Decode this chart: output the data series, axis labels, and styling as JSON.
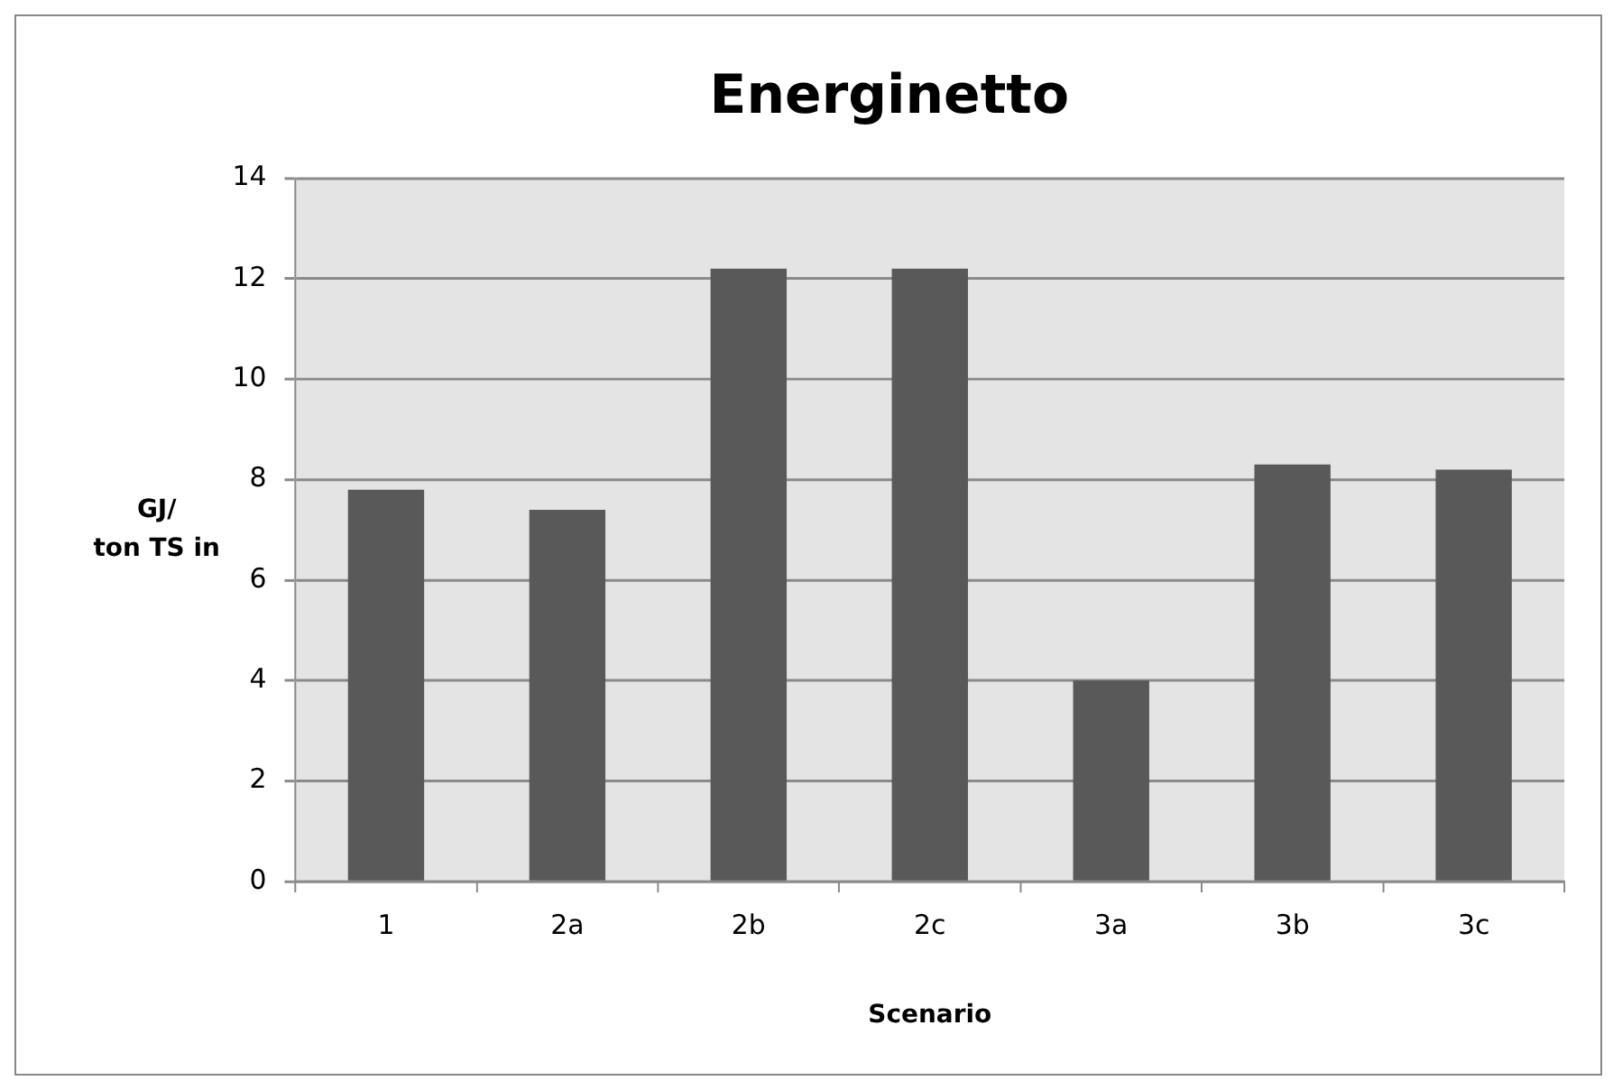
{
  "chart_data": {
    "type": "bar",
    "title": "Energinetto",
    "xlabel": "Scenario",
    "ylabel": "GJ/\nton TS in",
    "categories": [
      "1",
      "2a",
      "2b",
      "2c",
      "3a",
      "3b",
      "3c"
    ],
    "values": [
      7.8,
      7.4,
      12.2,
      12.2,
      4.0,
      8.3,
      8.2
    ],
    "color": "#595959",
    "ylim": [
      0,
      14
    ],
    "yticks": [
      0,
      2,
      4,
      6,
      8,
      10,
      12,
      14
    ],
    "grid": "y"
  }
}
